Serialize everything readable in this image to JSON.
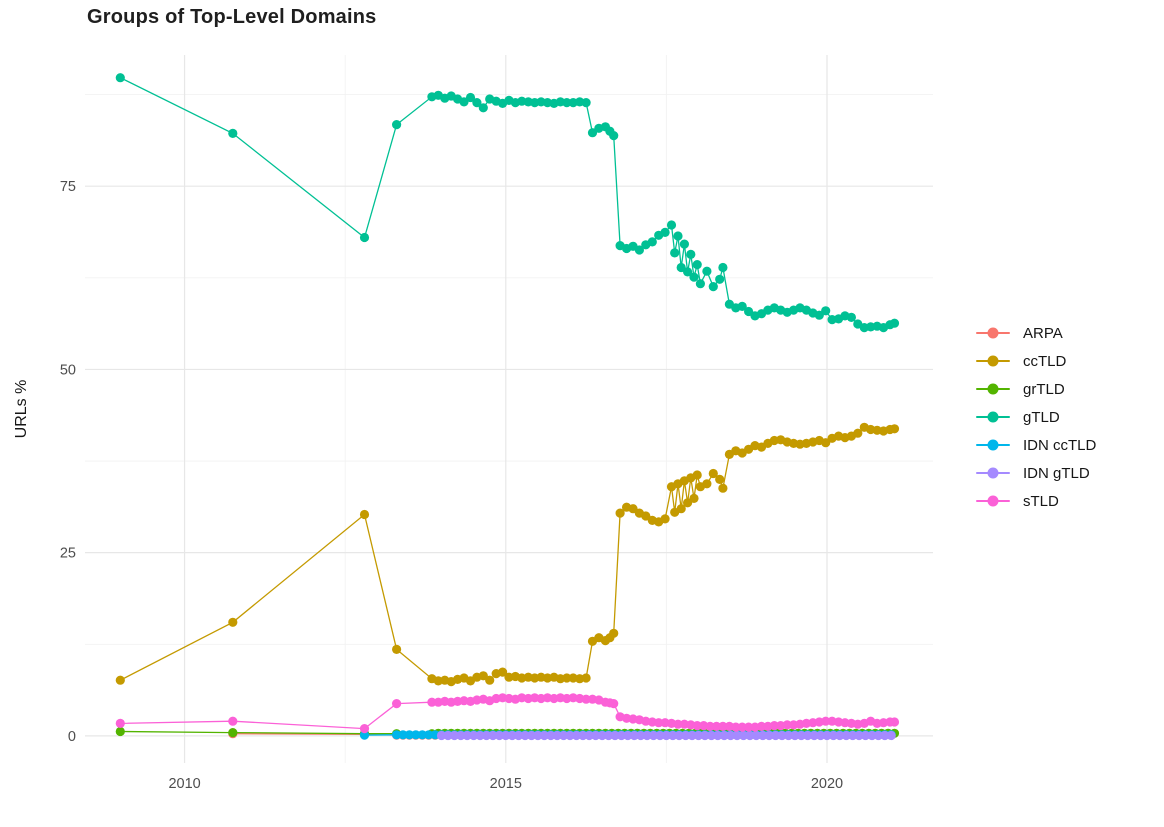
{
  "title": "Groups of Top-Level Domains",
  "axes": {
    "y_label": "URLs %",
    "x_tick_labels": [
      "2010",
      "2015",
      "2020"
    ],
    "y_tick_labels": [
      "0",
      "25",
      "50",
      "75"
    ]
  },
  "colors": {
    "background": "#ffffff",
    "grid_major": "#e7e7e7",
    "grid_minor": "#f2f2f2",
    "tick_text": "#4d4d4d",
    "title_text": "#1f1f1f"
  },
  "chart_data": {
    "type": "line",
    "title": "Groups of Top-Level Domains",
    "xlabel": "",
    "ylabel": "URLs %",
    "grid": true,
    "legend_position": "right",
    "x_ticks": [
      2010,
      2015,
      2020
    ],
    "y_ticks": [
      0,
      25,
      50,
      75
    ],
    "x_minor_ticks": [
      2012.5,
      2017.5
    ],
    "y_minor_ticks": [
      12.5,
      37.5,
      62.5,
      87.5
    ],
    "x_range": [
      2008.45,
      2021.65
    ],
    "y_range": [
      -3.7,
      92.9
    ],
    "series": [
      {
        "name": "ARPA",
        "color": "#F8766D",
        "points": [
          [
            2010.75,
            0.3
          ],
          [
            2012.8,
            0.2
          ]
        ],
        "flat": {
          "from": 2013.3,
          "to": 2021.05,
          "step": 0.1,
          "value": 0.1
        }
      },
      {
        "name": "ccTLD",
        "color": "#C49A00",
        "points": [
          [
            2009.0,
            7.6
          ],
          [
            2010.75,
            15.5
          ],
          [
            2012.8,
            30.2
          ],
          [
            2013.3,
            11.8
          ],
          [
            2013.85,
            7.8
          ],
          [
            2013.95,
            7.5
          ],
          [
            2014.05,
            7.6
          ],
          [
            2014.15,
            7.4
          ],
          [
            2014.25,
            7.7
          ],
          [
            2014.35,
            7.9
          ],
          [
            2014.45,
            7.5
          ],
          [
            2014.55,
            8.0
          ],
          [
            2014.65,
            8.2
          ],
          [
            2014.75,
            7.6
          ],
          [
            2014.85,
            8.5
          ],
          [
            2014.95,
            8.7
          ],
          [
            2015.05,
            8.0
          ],
          [
            2015.15,
            8.1
          ],
          [
            2015.25,
            7.9
          ],
          [
            2015.35,
            8.0
          ],
          [
            2015.45,
            7.9
          ],
          [
            2015.55,
            8.0
          ],
          [
            2015.65,
            7.9
          ],
          [
            2015.75,
            8.0
          ],
          [
            2015.85,
            7.8
          ],
          [
            2015.95,
            7.9
          ],
          [
            2016.05,
            7.9
          ],
          [
            2016.15,
            7.8
          ],
          [
            2016.25,
            7.9
          ],
          [
            2016.35,
            12.9
          ],
          [
            2016.45,
            13.4
          ],
          [
            2016.55,
            13.0
          ],
          [
            2016.62,
            13.4
          ],
          [
            2016.68,
            14.0
          ],
          [
            2016.78,
            30.4
          ],
          [
            2016.88,
            31.2
          ],
          [
            2016.98,
            31.0
          ],
          [
            2017.08,
            30.4
          ],
          [
            2017.18,
            30.0
          ],
          [
            2017.28,
            29.4
          ],
          [
            2017.38,
            29.2
          ],
          [
            2017.48,
            29.6
          ],
          [
            2017.58,
            34.0
          ],
          [
            2017.63,
            30.5
          ],
          [
            2017.68,
            34.4
          ],
          [
            2017.73,
            31.0
          ],
          [
            2017.78,
            34.8
          ],
          [
            2017.83,
            31.8
          ],
          [
            2017.88,
            35.2
          ],
          [
            2017.93,
            32.4
          ],
          [
            2017.98,
            35.6
          ],
          [
            2018.03,
            34.0
          ],
          [
            2018.13,
            34.4
          ],
          [
            2018.23,
            35.8
          ],
          [
            2018.33,
            35.0
          ],
          [
            2018.38,
            33.8
          ],
          [
            2018.48,
            38.4
          ],
          [
            2018.58,
            38.9
          ],
          [
            2018.68,
            38.6
          ],
          [
            2018.78,
            39.1
          ],
          [
            2018.88,
            39.6
          ],
          [
            2018.98,
            39.4
          ],
          [
            2019.08,
            39.9
          ],
          [
            2019.18,
            40.3
          ],
          [
            2019.28,
            40.4
          ],
          [
            2019.38,
            40.1
          ],
          [
            2019.48,
            39.9
          ],
          [
            2019.58,
            39.8
          ],
          [
            2019.68,
            39.9
          ],
          [
            2019.78,
            40.1
          ],
          [
            2019.88,
            40.3
          ],
          [
            2019.98,
            40.0
          ],
          [
            2020.08,
            40.6
          ],
          [
            2020.18,
            40.9
          ],
          [
            2020.28,
            40.7
          ],
          [
            2020.38,
            40.9
          ],
          [
            2020.48,
            41.3
          ],
          [
            2020.58,
            42.1
          ],
          [
            2020.68,
            41.8
          ],
          [
            2020.78,
            41.7
          ],
          [
            2020.88,
            41.6
          ],
          [
            2020.98,
            41.8
          ],
          [
            2021.05,
            41.9
          ]
        ]
      },
      {
        "name": "grTLD",
        "color": "#53B400",
        "points": [
          [
            2009.0,
            0.6
          ],
          [
            2010.75,
            0.45
          ],
          [
            2012.8,
            0.3
          ],
          [
            2013.3,
            0.3
          ],
          [
            2013.85,
            0.3
          ]
        ],
        "flat": {
          "from": 2013.95,
          "to": 2021.05,
          "step": 0.1,
          "value": 0.35
        }
      },
      {
        "name": "gTLD",
        "color": "#00C094",
        "points": [
          [
            2009.0,
            89.8
          ],
          [
            2010.75,
            82.2
          ],
          [
            2012.8,
            68.0
          ],
          [
            2013.3,
            83.4
          ],
          [
            2013.85,
            87.2
          ],
          [
            2013.95,
            87.4
          ],
          [
            2014.05,
            87.0
          ],
          [
            2014.15,
            87.3
          ],
          [
            2014.25,
            86.9
          ],
          [
            2014.35,
            86.5
          ],
          [
            2014.45,
            87.1
          ],
          [
            2014.55,
            86.4
          ],
          [
            2014.65,
            85.7
          ],
          [
            2014.75,
            86.9
          ],
          [
            2014.85,
            86.6
          ],
          [
            2014.95,
            86.3
          ],
          [
            2015.05,
            86.7
          ],
          [
            2015.15,
            86.4
          ],
          [
            2015.25,
            86.6
          ],
          [
            2015.35,
            86.5
          ],
          [
            2015.45,
            86.4
          ],
          [
            2015.55,
            86.5
          ],
          [
            2015.65,
            86.4
          ],
          [
            2015.75,
            86.3
          ],
          [
            2015.85,
            86.5
          ],
          [
            2015.95,
            86.4
          ],
          [
            2016.05,
            86.4
          ],
          [
            2016.15,
            86.5
          ],
          [
            2016.25,
            86.4
          ],
          [
            2016.35,
            82.3
          ],
          [
            2016.45,
            82.9
          ],
          [
            2016.55,
            83.1
          ],
          [
            2016.62,
            82.5
          ],
          [
            2016.68,
            81.9
          ],
          [
            2016.78,
            66.9
          ],
          [
            2016.88,
            66.5
          ],
          [
            2016.98,
            66.8
          ],
          [
            2017.08,
            66.3
          ],
          [
            2017.18,
            67.0
          ],
          [
            2017.28,
            67.4
          ],
          [
            2017.38,
            68.3
          ],
          [
            2017.48,
            68.7
          ],
          [
            2017.58,
            69.7
          ],
          [
            2017.63,
            65.9
          ],
          [
            2017.68,
            68.2
          ],
          [
            2017.73,
            63.9
          ],
          [
            2017.78,
            67.1
          ],
          [
            2017.83,
            63.3
          ],
          [
            2017.88,
            65.7
          ],
          [
            2017.93,
            62.6
          ],
          [
            2017.98,
            64.3
          ],
          [
            2018.03,
            61.7
          ],
          [
            2018.13,
            63.4
          ],
          [
            2018.23,
            61.3
          ],
          [
            2018.33,
            62.3
          ],
          [
            2018.38,
            63.9
          ],
          [
            2018.48,
            58.9
          ],
          [
            2018.58,
            58.4
          ],
          [
            2018.68,
            58.6
          ],
          [
            2018.78,
            57.9
          ],
          [
            2018.88,
            57.3
          ],
          [
            2018.98,
            57.6
          ],
          [
            2019.08,
            58.1
          ],
          [
            2019.18,
            58.4
          ],
          [
            2019.28,
            58.1
          ],
          [
            2019.38,
            57.8
          ],
          [
            2019.48,
            58.1
          ],
          [
            2019.58,
            58.4
          ],
          [
            2019.68,
            58.1
          ],
          [
            2019.78,
            57.7
          ],
          [
            2019.88,
            57.4
          ],
          [
            2019.98,
            58.0
          ],
          [
            2020.08,
            56.8
          ],
          [
            2020.18,
            56.9
          ],
          [
            2020.28,
            57.3
          ],
          [
            2020.38,
            57.1
          ],
          [
            2020.48,
            56.2
          ],
          [
            2020.58,
            55.7
          ],
          [
            2020.68,
            55.8
          ],
          [
            2020.78,
            55.9
          ],
          [
            2020.88,
            55.7
          ],
          [
            2020.98,
            56.1
          ],
          [
            2021.05,
            56.3
          ]
        ]
      },
      {
        "name": "IDN ccTLD",
        "color": "#00B6EB",
        "points": [
          [
            2012.8,
            0.1
          ]
        ],
        "flat": {
          "from": 2013.3,
          "to": 2021.05,
          "step": 0.1,
          "value": 0.15
        }
      },
      {
        "name": "IDN gTLD",
        "color": "#A58AFF",
        "points": [],
        "flat": {
          "from": 2014.0,
          "to": 2021.05,
          "step": 0.1,
          "value": 0.05
        }
      },
      {
        "name": "sTLD",
        "color": "#FB61D7",
        "points": [
          [
            2009.0,
            1.7
          ],
          [
            2010.75,
            2.0
          ],
          [
            2012.8,
            1.0
          ],
          [
            2013.3,
            4.4
          ],
          [
            2013.85,
            4.6
          ],
          [
            2013.95,
            4.6
          ],
          [
            2014.05,
            4.7
          ],
          [
            2014.15,
            4.6
          ],
          [
            2014.25,
            4.7
          ],
          [
            2014.35,
            4.8
          ],
          [
            2014.45,
            4.7
          ],
          [
            2014.55,
            4.9
          ],
          [
            2014.65,
            5.0
          ],
          [
            2014.75,
            4.8
          ],
          [
            2014.85,
            5.1
          ],
          [
            2014.95,
            5.2
          ],
          [
            2015.05,
            5.1
          ],
          [
            2015.15,
            5.0
          ],
          [
            2015.25,
            5.2
          ],
          [
            2015.35,
            5.1
          ],
          [
            2015.45,
            5.2
          ],
          [
            2015.55,
            5.1
          ],
          [
            2015.65,
            5.2
          ],
          [
            2015.75,
            5.1
          ],
          [
            2015.85,
            5.2
          ],
          [
            2015.95,
            5.1
          ],
          [
            2016.05,
            5.2
          ],
          [
            2016.15,
            5.1
          ],
          [
            2016.25,
            5.0
          ],
          [
            2016.35,
            5.0
          ],
          [
            2016.45,
            4.9
          ],
          [
            2016.55,
            4.6
          ],
          [
            2016.62,
            4.5
          ],
          [
            2016.68,
            4.4
          ],
          [
            2016.78,
            2.6
          ],
          [
            2016.88,
            2.4
          ],
          [
            2016.98,
            2.3
          ],
          [
            2017.08,
            2.2
          ],
          [
            2017.18,
            2.0
          ],
          [
            2017.28,
            1.9
          ],
          [
            2017.38,
            1.8
          ],
          [
            2017.48,
            1.8
          ],
          [
            2017.58,
            1.7
          ],
          [
            2017.68,
            1.6
          ],
          [
            2017.78,
            1.6
          ],
          [
            2017.88,
            1.5
          ],
          [
            2017.98,
            1.4
          ],
          [
            2018.08,
            1.4
          ],
          [
            2018.18,
            1.3
          ],
          [
            2018.28,
            1.3
          ],
          [
            2018.38,
            1.3
          ],
          [
            2018.48,
            1.3
          ],
          [
            2018.58,
            1.2
          ],
          [
            2018.68,
            1.2
          ],
          [
            2018.78,
            1.2
          ],
          [
            2018.88,
            1.2
          ],
          [
            2018.98,
            1.3
          ],
          [
            2019.08,
            1.3
          ],
          [
            2019.18,
            1.4
          ],
          [
            2019.28,
            1.4
          ],
          [
            2019.38,
            1.5
          ],
          [
            2019.48,
            1.5
          ],
          [
            2019.58,
            1.6
          ],
          [
            2019.68,
            1.7
          ],
          [
            2019.78,
            1.8
          ],
          [
            2019.88,
            1.9
          ],
          [
            2019.98,
            2.0
          ],
          [
            2020.08,
            2.0
          ],
          [
            2020.18,
            1.9
          ],
          [
            2020.28,
            1.8
          ],
          [
            2020.38,
            1.7
          ],
          [
            2020.48,
            1.6
          ],
          [
            2020.58,
            1.7
          ],
          [
            2020.68,
            2.0
          ],
          [
            2020.78,
            1.7
          ],
          [
            2020.88,
            1.8
          ],
          [
            2020.98,
            1.9
          ],
          [
            2021.05,
            1.9
          ]
        ]
      }
    ]
  }
}
